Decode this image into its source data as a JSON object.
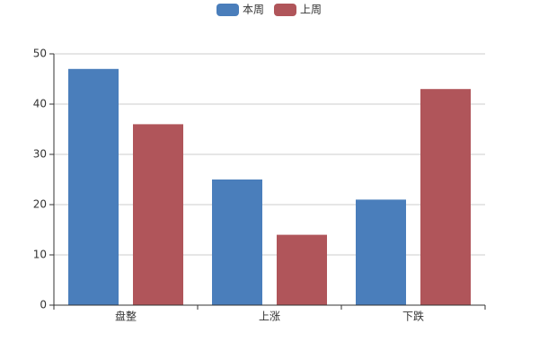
{
  "chart_data": {
    "type": "bar",
    "categories": [
      "盘整",
      "上涨",
      "下跌"
    ],
    "series": [
      {
        "name": "本周",
        "color": "#4a7ebb",
        "values": [
          47,
          25,
          21
        ]
      },
      {
        "name": "上周",
        "color": "#b0555a",
        "values": [
          36,
          14,
          43
        ]
      }
    ],
    "ylim": [
      0,
      50
    ],
    "yticks": [
      0,
      10,
      20,
      30,
      40,
      50
    ],
    "grid": true,
    "legend": "top"
  }
}
